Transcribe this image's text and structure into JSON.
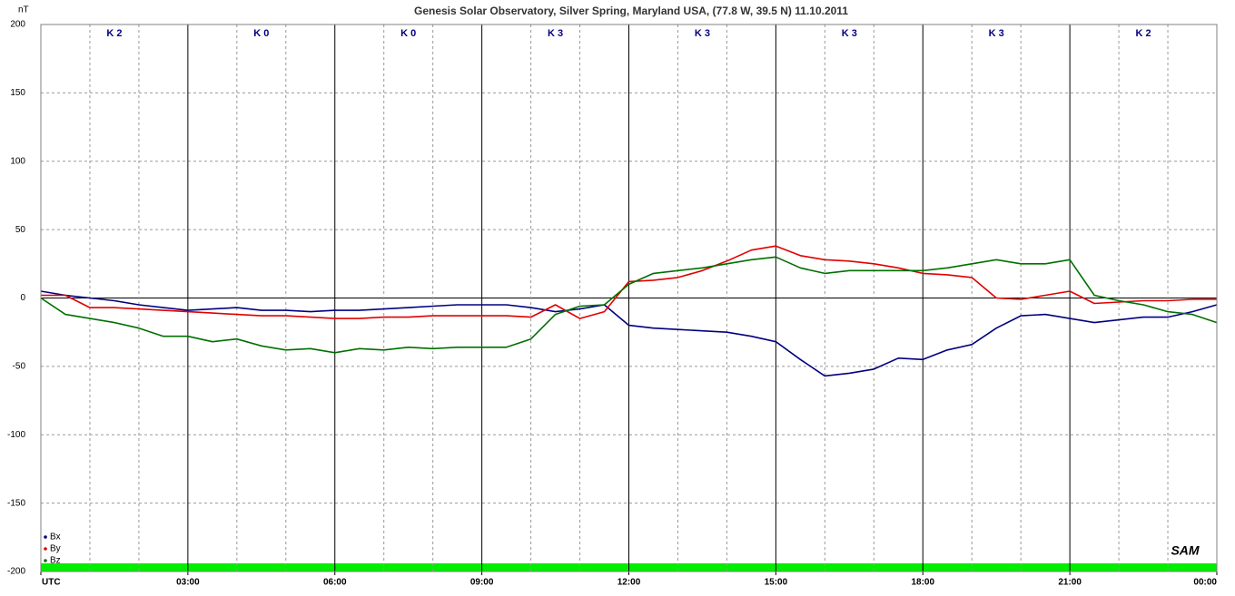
{
  "chart_data": {
    "type": "line",
    "title": "Genesis Solar Observatory, Silver Spring, Maryland USA, (77.8 W, 39.5 N)  11.10.2011",
    "ylabel": "nT",
    "logo": "SAM",
    "x": [
      0,
      0.5,
      1,
      1.5,
      2,
      2.5,
      3,
      3.5,
      4,
      4.5,
      5,
      5.5,
      6,
      6.5,
      7,
      7.5,
      8,
      8.5,
      9,
      9.5,
      10,
      10.5,
      11,
      11.5,
      12,
      12.5,
      13,
      13.5,
      14,
      14.5,
      15,
      15.5,
      16,
      16.5,
      17,
      17.5,
      18,
      18.5,
      19,
      19.5,
      20,
      20.5,
      21,
      21.5,
      22,
      22.5,
      23,
      23.5,
      24
    ],
    "series": [
      {
        "name": "Bx",
        "color": "#000080",
        "values": [
          5,
          2,
          0,
          -2,
          -5,
          -7,
          -9,
          -8,
          -7,
          -9,
          -9,
          -10,
          -9,
          -9,
          -8,
          -7,
          -6,
          -5,
          -5,
          -5,
          -7,
          -10,
          -8,
          -5,
          -20,
          -22,
          -23,
          -24,
          -25,
          -28,
          -32,
          -45,
          -57,
          -55,
          -52,
          -44,
          -45,
          -38,
          -34,
          -22,
          -13,
          -12,
          -15,
          -18,
          -16,
          -14,
          -14,
          -10,
          -5
        ]
      },
      {
        "name": "By",
        "color": "#e00000",
        "values": [
          2,
          2,
          -7,
          -7,
          -8,
          -9,
          -10,
          -11,
          -12,
          -13,
          -13,
          -14,
          -15,
          -15,
          -14,
          -14,
          -13,
          -13,
          -13,
          -13,
          -14,
          -5,
          -15,
          -10,
          12,
          13,
          15,
          20,
          27,
          35,
          38,
          31,
          28,
          27,
          25,
          22,
          18,
          17,
          15,
          0,
          -1,
          2,
          5,
          -4,
          -3,
          -2,
          -2,
          -1,
          -1
        ]
      },
      {
        "name": "Bz",
        "color": "#007000",
        "values": [
          0,
          -12,
          -15,
          -18,
          -22,
          -28,
          -28,
          -32,
          -30,
          -35,
          -38,
          -37,
          -40,
          -37,
          -38,
          -36,
          -37,
          -36,
          -36,
          -36,
          -30,
          -12,
          -6,
          -5,
          10,
          18,
          20,
          22,
          25,
          28,
          30,
          22,
          18,
          20,
          20,
          20,
          20,
          22,
          25,
          28,
          25,
          25,
          28,
          2,
          -2,
          -5,
          -10,
          -12,
          -18
        ]
      }
    ],
    "k_index": [
      "K 2",
      "K 0",
      "K 0",
      "K 3",
      "K 3",
      "K 3",
      "K 3",
      "K 2"
    ],
    "xlim": [
      0,
      24
    ],
    "xticks": [
      {
        "value": 0,
        "label": "UTC"
      },
      {
        "value": 3,
        "label": "03:00"
      },
      {
        "value": 6,
        "label": "06:00"
      },
      {
        "value": 9,
        "label": "09:00"
      },
      {
        "value": 12,
        "label": "12:00"
      },
      {
        "value": 15,
        "label": "15:00"
      },
      {
        "value": 18,
        "label": "18:00"
      },
      {
        "value": 21,
        "label": "21:00"
      },
      {
        "value": 24,
        "label": "00:00"
      }
    ],
    "xminorticks": [
      1,
      2,
      4,
      5,
      7,
      8,
      10,
      11,
      13,
      14,
      16,
      17,
      19,
      20,
      22,
      23
    ],
    "ylim": [
      -200,
      200
    ],
    "yticks": [
      -200,
      -150,
      -100,
      -50,
      0,
      50,
      100,
      150,
      200
    ],
    "grid": true,
    "legend": "lower-left"
  }
}
